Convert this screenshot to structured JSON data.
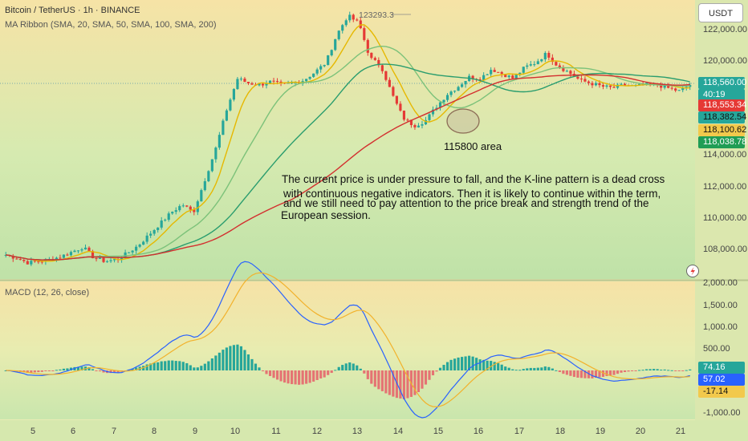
{
  "title": "Bitcoin / TetherUS · 1h · BINANCE",
  "indicator": "MA Ribbon (SMA, 20, SMA, 50, SMA, 100, SMA, 200)",
  "currency": "USDT",
  "high_label": "123293.3",
  "area_label": "115800 area",
  "countdown": "40:19",
  "annotation": [
    "The current price is under pressure to fall, and the K-line pattern is a dead cross",
    "with continuous negative indicators. Then it is likely to continue within the term,",
    "and we still need to pay attention to the price break and strength trend of the",
    "European session."
  ],
  "price_axis": [
    "122,000.00",
    "120,000.00",
    "114,000.00",
    "112,000.00",
    "110,000.00",
    "108,000.00"
  ],
  "price_tags": [
    {
      "value": "118,560.00",
      "color": "#26a69a"
    },
    {
      "value": "118,553.34",
      "color": "#e53935"
    },
    {
      "value": "118,382.54",
      "color": "#26a69a"
    },
    {
      "value": "118,100.62",
      "color": "#f2c94c"
    },
    {
      "value": "118,038.78",
      "color": "#1f9d55"
    }
  ],
  "macd": {
    "label": "MACD (12, 26, close)",
    "axis": [
      "2,000.00",
      "1,500.00",
      "1,000.00",
      "500.00",
      "-1,000.00"
    ],
    "tags": [
      {
        "value": "74.16",
        "color": "#26a69a"
      },
      {
        "value": "57.02",
        "color": "#2962ff"
      },
      {
        "value": "-17.14",
        "color": "#f2c94c"
      }
    ]
  },
  "time_axis": [
    "5",
    "6",
    "7",
    "8",
    "9",
    "10",
    "11",
    "12",
    "13",
    "14",
    "15",
    "16",
    "17",
    "18",
    "19",
    "20",
    "21"
  ],
  "chart_data": {
    "type": "line",
    "series": [
      {
        "values": [
          107800,
          107600,
          107300,
          107400,
          107500,
          107700,
          108000,
          108300,
          107600,
          107400,
          107500,
          107900,
          108400,
          109100,
          109800,
          110500,
          111000,
          110500,
          112500,
          114500,
          117000,
          119000,
          118700,
          118600,
          118800,
          118600,
          118700,
          118900,
          119400,
          120000,
          121800,
          123000,
          122500,
          120300,
          119800,
          118000,
          116500,
          116000,
          116300,
          117200,
          118000,
          118500,
          119100,
          119000,
          119600,
          119300,
          119000,
          119700,
          120000,
          120600,
          119800,
          119400,
          118900,
          118700,
          118500,
          118400,
          118600,
          118500,
          118600,
          118600,
          118400,
          118200,
          118600
        ]
      }
    ],
    "ma_ribbon": [
      "SMA 20",
      "SMA 50",
      "SMA 100",
      "SMA 200"
    ],
    "x_ticks": [
      "5",
      "6",
      "7",
      "8",
      "9",
      "10",
      "11",
      "12",
      "13",
      "14",
      "15",
      "16",
      "17",
      "18",
      "19",
      "20",
      "21"
    ],
    "y_ticks": [
      122000,
      120000,
      114000,
      112000,
      110000,
      108000
    ],
    "ylim": [
      106500,
      123500
    ],
    "annotations": [
      "123293.3",
      "115800 area"
    ],
    "current_price": 118560.0,
    "macd": {
      "label": "MACD (12, 26, close)",
      "ylim": [
        -1100,
        2000
      ],
      "y_ticks": [
        2000,
        1500,
        1000,
        500,
        -1000
      ],
      "macd_line_last": 57.02,
      "signal_last": -17.14,
      "histogram_last": 74.16
    }
  }
}
